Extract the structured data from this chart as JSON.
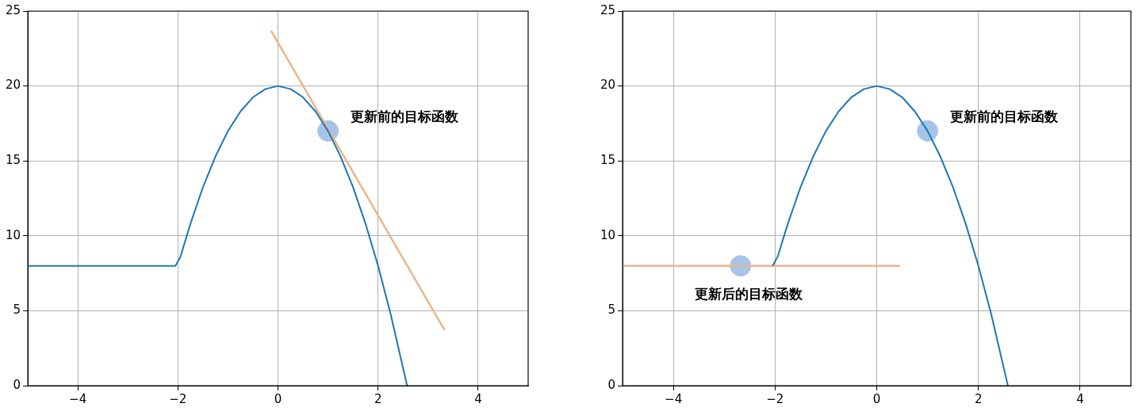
{
  "chart_data": [
    {
      "type": "line",
      "xlim": [
        -5,
        5
      ],
      "xticks": [
        -4,
        -2,
        0,
        2,
        4
      ],
      "ylim": [
        0,
        25
      ],
      "yticks": [
        0,
        5,
        10,
        15,
        20,
        25
      ],
      "grid": true,
      "legend": false,
      "series": [
        {
          "color": "#1f77b4",
          "marker": "none",
          "x": [
            -5,
            -2.05,
            -1.95,
            -1.75,
            -1.5,
            -1.25,
            -1,
            -0.75,
            -0.5,
            -0.25,
            0,
            0.25,
            0.5,
            0.75,
            1,
            1.25,
            1.5,
            1.75,
            2,
            2.25,
            2.58
          ],
          "values": [
            8,
            8,
            8.6,
            10.8,
            13.25,
            15.3,
            17,
            18.3,
            19.25,
            19.8,
            20,
            19.8,
            19.25,
            18.3,
            17,
            15.3,
            13.25,
            10.8,
            8,
            4.8,
            0
          ]
        },
        {
          "color": "#efb48a",
          "marker": "none",
          "x": [
            -0.14,
            3.33
          ],
          "values": [
            23.7,
            3.7
          ]
        },
        {
          "type": "scatter",
          "color": "#a6c4e8",
          "marker": "circle",
          "x": [
            1
          ],
          "values": [
            17
          ]
        }
      ],
      "annotations": [
        "更新前的目标函数"
      ]
    },
    {
      "type": "line",
      "xlim": [
        -5,
        5
      ],
      "xticks": [
        -4,
        -2,
        0,
        2,
        4
      ],
      "ylim": [
        0,
        25
      ],
      "yticks": [
        0,
        5,
        10,
        15,
        20,
        25
      ],
      "grid": true,
      "legend": false,
      "series": [
        {
          "color": "#1f77b4",
          "marker": "none",
          "x": [
            -2.05,
            -1.95,
            -1.75,
            -1.5,
            -1.25,
            -1,
            -0.75,
            -0.5,
            -0.25,
            0,
            0.25,
            0.5,
            0.75,
            1,
            1.25,
            1.5,
            1.75,
            2,
            2.25,
            2.58
          ],
          "values": [
            8,
            8.6,
            10.8,
            13.25,
            15.3,
            17,
            18.3,
            19.25,
            19.8,
            20,
            19.8,
            19.25,
            18.3,
            17,
            15.3,
            13.25,
            10.8,
            8,
            4.8,
            0
          ]
        },
        {
          "color": "#efb48a",
          "marker": "none",
          "x": [
            -5,
            0.46
          ],
          "values": [
            8,
            8
          ]
        },
        {
          "type": "scatter",
          "color": "#a6c4e8",
          "marker": "circle",
          "x": [
            1,
            -2.68
          ],
          "values": [
            17,
            8
          ]
        }
      ],
      "annotations": [
        "更新前的目标函数",
        "更新后的目标函数"
      ]
    }
  ]
}
